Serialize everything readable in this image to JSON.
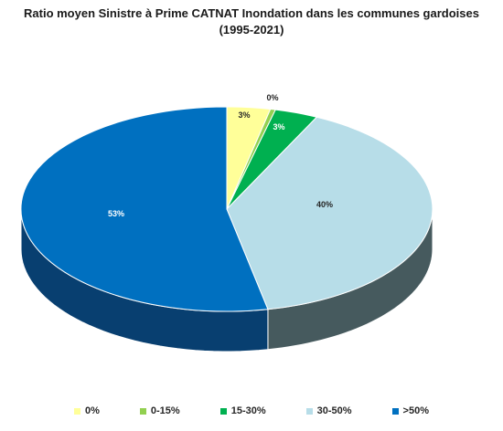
{
  "chart_data": {
    "type": "pie",
    "title_line1": "Ratio moyen Sinistre à Prime CATNAT Inondation dans les communes gardoises",
    "title_line2": "(1995-2021)",
    "categories": [
      "0%",
      "0-15%",
      "15-30%",
      "30-50%",
      ">50%"
    ],
    "values": [
      3.4,
      0.4,
      3.4,
      39.6,
      53.2
    ],
    "labels": [
      "3%",
      "0%",
      "3%",
      "40%",
      "53%"
    ],
    "colors": [
      "#FFFF99",
      "#92D050",
      "#00B050",
      "#B7DDE8",
      "#0070C0"
    ],
    "side_colors": [
      "#C8C87A",
      "#6E9A3C",
      "#007A3C",
      "#465A5E",
      "#083F70"
    ],
    "label_colors": [
      "#262626",
      "#262626",
      "#ffffff",
      "#262626",
      "#ffffff"
    ],
    "legend_position": "bottom",
    "style": "3d"
  }
}
